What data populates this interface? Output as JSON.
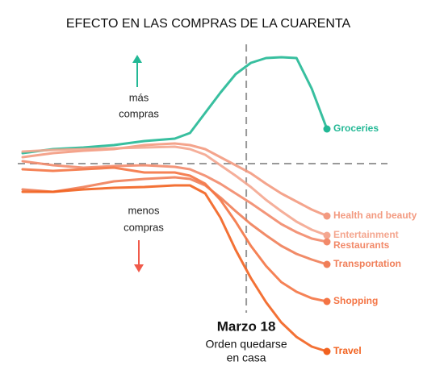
{
  "chart_data": {
    "type": "line",
    "title": "EFECTO EN LAS COMPRAS DE LA CUARENTA",
    "x": [
      0,
      10,
      20,
      30,
      40,
      50,
      55,
      60,
      65,
      70,
      75,
      80,
      85,
      90,
      95,
      100
    ],
    "xlim": [
      0,
      100
    ],
    "ylim": [
      -26,
      16
    ],
    "baseline": 0,
    "event_x": 73.5,
    "event_title": "Marzo 18",
    "event_text": [
      "Orden quedarse",
      "en casa"
    ],
    "up_text": [
      "más",
      "compras"
    ],
    "down_text": [
      "menos",
      "compras"
    ],
    "series": [
      {
        "name": "Groceries",
        "color": "#22b895",
        "values": [
          1.3,
          1.8,
          2.0,
          2.3,
          2.8,
          3.1,
          3.8,
          6.3,
          8.8,
          11.1,
          12.5,
          13.1,
          13.2,
          13.1,
          9.3,
          4.3
        ]
      },
      {
        "name": "Health and beauty",
        "color": "#f39a80",
        "values": [
          0.8,
          1.3,
          1.6,
          1.8,
          2.3,
          2.5,
          2.3,
          1.8,
          0.8,
          -0.2,
          -1.2,
          -2.5,
          -3.7,
          -4.7,
          -5.7,
          -6.5
        ]
      },
      {
        "name": "Entertainment",
        "color": "#f4a68f",
        "values": [
          1.5,
          1.7,
          1.8,
          1.9,
          2.0,
          2.1,
          1.8,
          1.1,
          -0.2,
          -1.5,
          -2.9,
          -4.5,
          -5.9,
          -7.2,
          -8.2,
          -8.9
        ]
      },
      {
        "name": "Restaurants",
        "color": "#f28a6a",
        "values": [
          0.3,
          -0.2,
          -0.5,
          -0.3,
          -0.2,
          -0.4,
          -0.7,
          -1.5,
          -2.5,
          -3.7,
          -4.9,
          -6.2,
          -7.5,
          -8.5,
          -9.3,
          -9.7
        ]
      },
      {
        "name": "Transportation",
        "color": "#f07e58",
        "values": [
          -3.2,
          -3.5,
          -2.9,
          -2.2,
          -1.9,
          -1.7,
          -1.9,
          -2.7,
          -4.2,
          -5.9,
          -7.5,
          -8.9,
          -10.2,
          -11.2,
          -11.9,
          -12.5
        ]
      },
      {
        "name": "Shopping",
        "color": "#f47444",
        "values": [
          -0.7,
          -0.9,
          -0.7,
          -0.5,
          -1.1,
          -1.1,
          -1.5,
          -2.5,
          -4.5,
          -7.2,
          -10.2,
          -12.7,
          -14.7,
          -15.9,
          -16.7,
          -17.1
        ]
      },
      {
        "name": "Travel",
        "color": "#f2621f",
        "values": [
          -3.5,
          -3.5,
          -3.2,
          -3.0,
          -2.9,
          -2.7,
          -2.7,
          -3.7,
          -6.7,
          -10.7,
          -14.2,
          -17.2,
          -19.7,
          -21.5,
          -22.7,
          -23.3
        ]
      }
    ]
  }
}
